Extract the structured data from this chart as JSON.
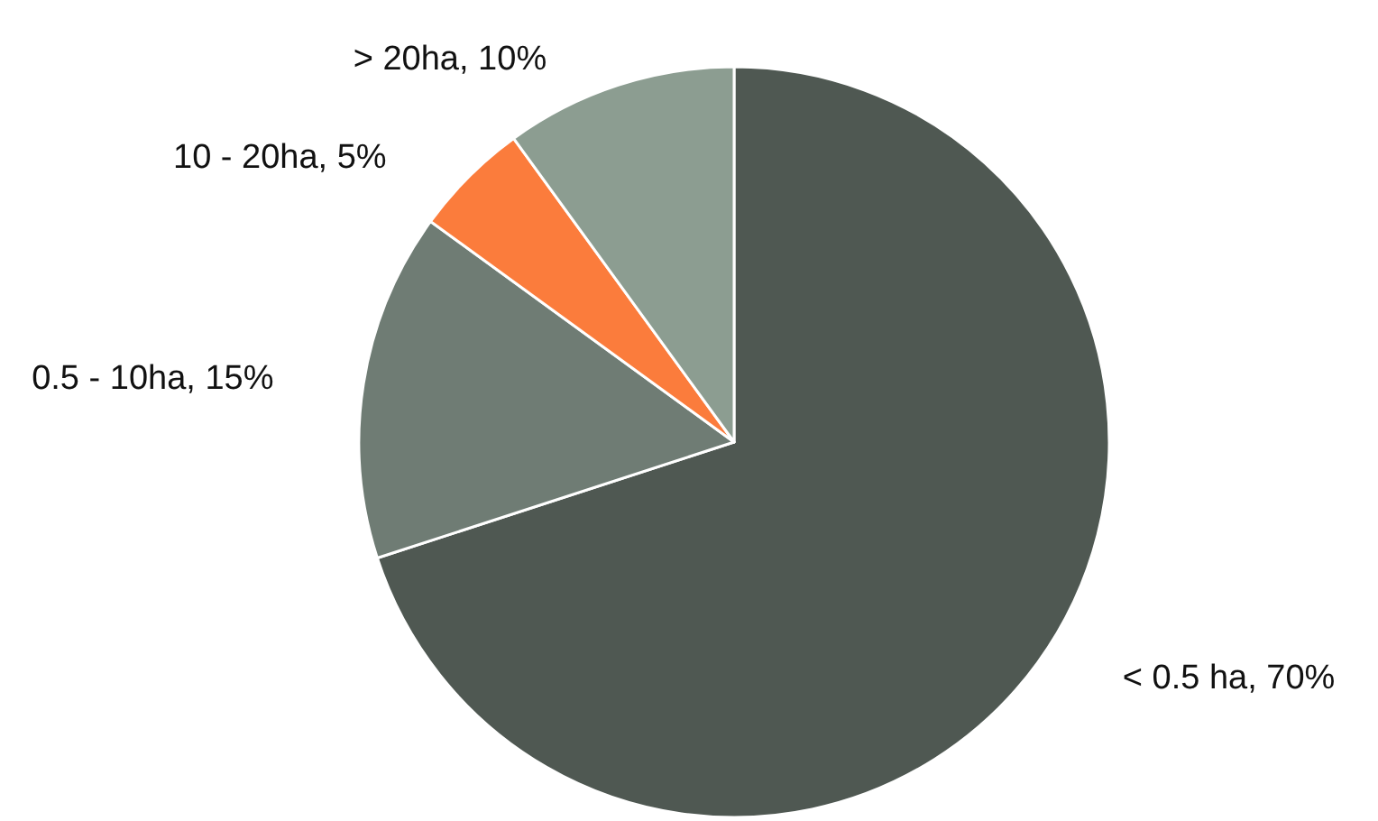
{
  "chart_data": {
    "type": "pie",
    "categories": [
      "< 0.5 ha, 70%",
      "0.5 - 10ha, 15%",
      "10 - 20ha, 5%",
      "> 20ha, 10%"
    ],
    "values": [
      70,
      15,
      5,
      10
    ],
    "colors": [
      "#4f5852",
      "#6f7c74",
      "#fb7c3c",
      "#8c9d91"
    ],
    "legend": false
  }
}
